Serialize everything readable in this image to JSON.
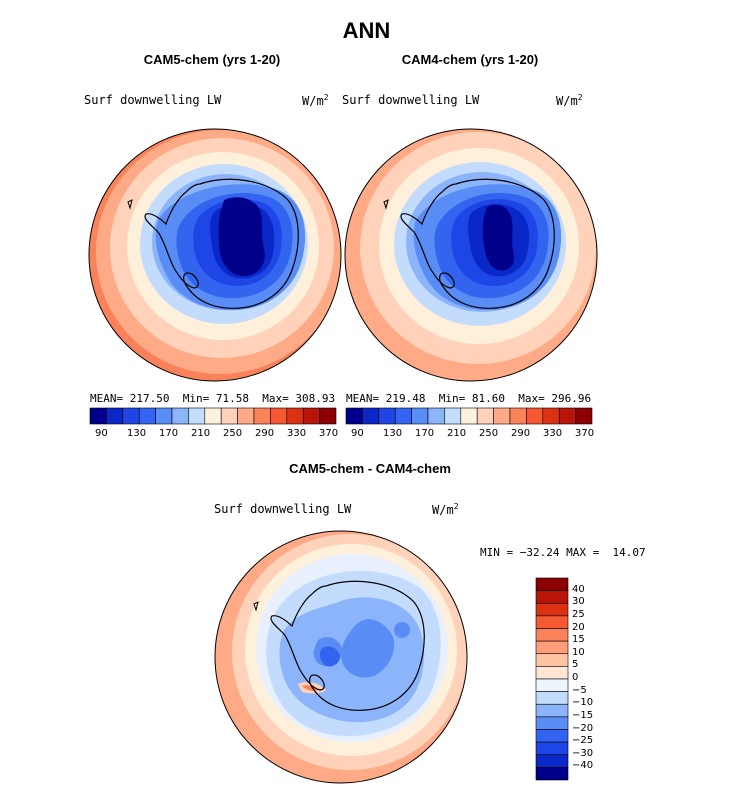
{
  "main_title": "ANN",
  "palette": [
    "#00008b",
    "#0a28c8",
    "#1e46e6",
    "#3264f0",
    "#5a8cf5",
    "#8cb4fa",
    "#c3dcfd",
    "#fff0dc",
    "#ffd2b9",
    "#ffaa87",
    "#fa825a",
    "#f55a32",
    "#dc3214",
    "#b9140a",
    "#8b0000"
  ],
  "panels": [
    {
      "title": "CAM5-chem (yrs 1-20)",
      "variable": "Surf downwelling LW",
      "units": "W/m2",
      "mean_label": "MEAN=",
      "mean": "217.50",
      "min_label": "Min=",
      "min": "71.58",
      "max_label": "Max=",
      "max": "308.93",
      "colorbar_ticks": [
        "90",
        "130",
        "170",
        "210",
        "250",
        "290",
        "330",
        "370"
      ]
    },
    {
      "title": "CAM4-chem (yrs 1-20)",
      "variable": "Surf downwelling LW",
      "units": "W/m2",
      "mean_label": "MEAN=",
      "mean": "219.48",
      "min_label": "Min=",
      "min": "81.60",
      "max_label": "Max=",
      "max": "296.96",
      "colorbar_ticks": [
        "90",
        "130",
        "170",
        "210",
        "250",
        "290",
        "330",
        "370"
      ]
    }
  ],
  "diff": {
    "title": "CAM5-chem - CAM4-chem",
    "variable": "Surf downwelling LW",
    "units": "W/m2",
    "min_label": "MIN =",
    "min": "−32.24",
    "max_label": "MAX =",
    "max": "14.07",
    "colorbar_labels": [
      "40",
      "30",
      "25",
      "20",
      "15",
      "10",
      "5",
      "0",
      "−5",
      "−10",
      "−15",
      "−20",
      "−25",
      "−30",
      "−40"
    ],
    "colorbar_colors": [
      "#8b0000",
      "#b9140a",
      "#dc3214",
      "#f55a32",
      "#fa825a",
      "#ff9e7a",
      "#ffc4a4",
      "#ffe6d4",
      "#eef4fe",
      "#c3dcfd",
      "#8cb4fa",
      "#5a8cf5",
      "#3264f0",
      "#1e46e6",
      "#0a28c8",
      "#00008b"
    ]
  }
}
